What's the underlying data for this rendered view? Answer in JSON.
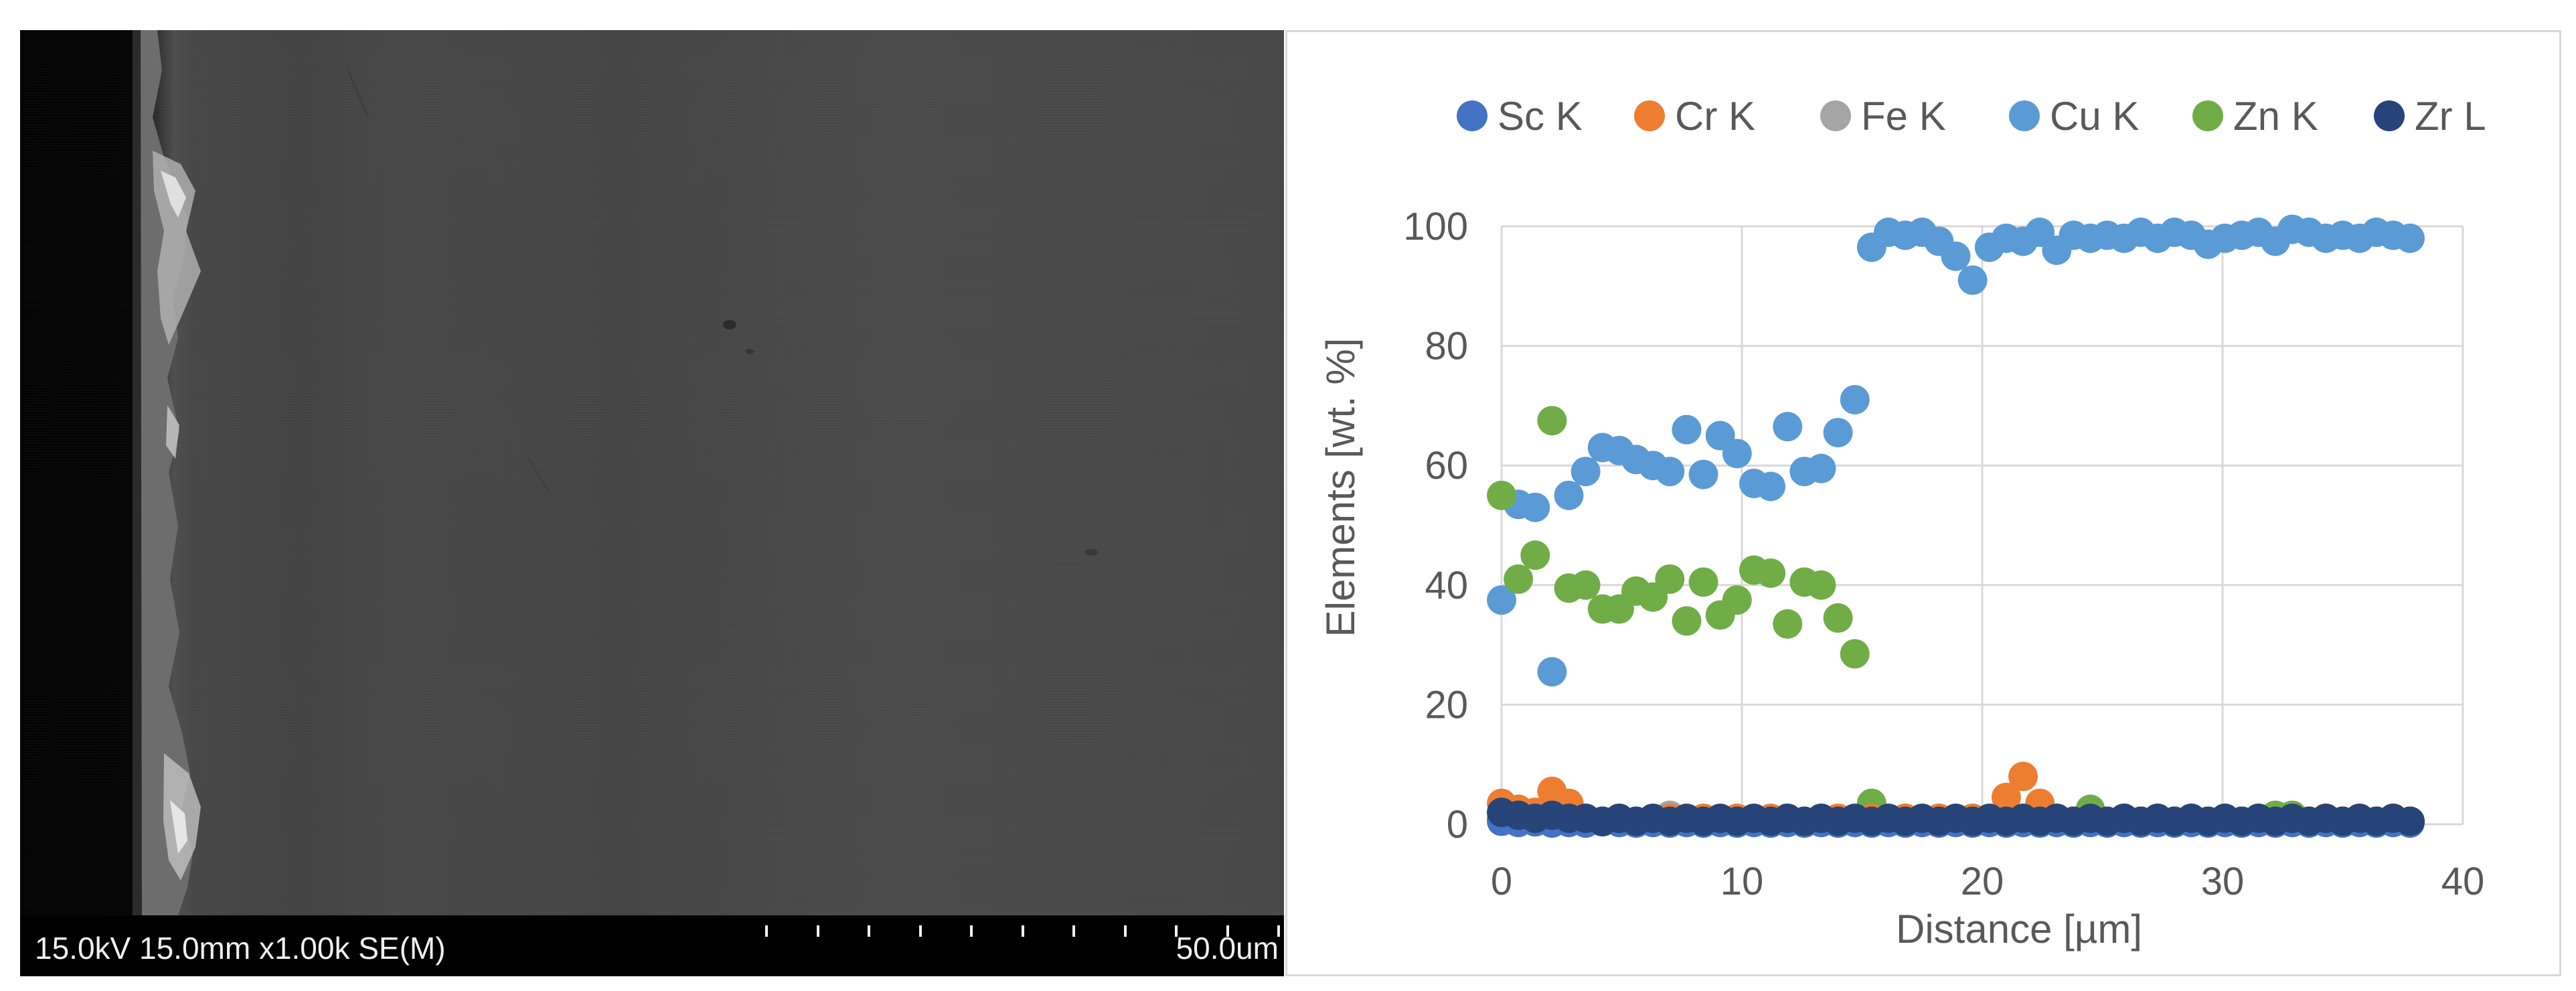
{
  "sem": {
    "info_text": "15.0kV 15.0mm x1.00k SE(M)",
    "scale_label": "50.0um"
  },
  "chart_data": {
    "type": "scatter",
    "title": "",
    "xlabel": "Distance [µm]",
    "ylabel": "Elements [wt. %]",
    "xlim": [
      0,
      40
    ],
    "ylim": [
      0,
      100
    ],
    "xticks": [
      0,
      10,
      20,
      30,
      40
    ],
    "yticks": [
      0,
      20,
      40,
      60,
      80,
      100
    ],
    "grid": true,
    "legend_position": "top",
    "x": [
      0,
      0.7,
      1.4,
      2.1,
      2.8,
      3.5,
      4.2,
      4.9,
      5.6,
      6.3,
      7,
      7.7,
      8.4,
      9.1,
      9.8,
      10.5,
      11.2,
      11.9,
      12.6,
      13.3,
      14,
      14.7,
      15.4,
      16.1,
      16.8,
      17.5,
      18.2,
      18.9,
      19.6,
      20.3,
      21,
      21.7,
      22.4,
      23.1,
      23.8,
      24.5,
      25.2,
      25.9,
      26.6,
      27.3,
      28,
      28.7,
      29.4,
      30.1,
      30.8,
      31.5,
      32.2,
      32.9,
      33.6,
      34.3,
      35,
      35.7,
      36.4,
      37.1,
      37.8
    ],
    "series": [
      {
        "name": "Sc K",
        "color": "#4472C4",
        "values": [
          0.5,
          0.3,
          0.4,
          0.2,
          0.3,
          0.2,
          0.4,
          0.3,
          0.2,
          0.3,
          0.2,
          0.3,
          0.2,
          0.3,
          0.2,
          0.3,
          0.2,
          0.3,
          0.2,
          0.3,
          0.2,
          0.3,
          0.2,
          0.3,
          0.2,
          0.3,
          0.2,
          0.3,
          0.2,
          0.3,
          0.2,
          0.3,
          0.2,
          0.3,
          0.2,
          0.3,
          0.2,
          0.3,
          0.2,
          0.3,
          0.2,
          0.3,
          0.2,
          0.3,
          0.2,
          0.3,
          0.2,
          0.3,
          0.2,
          0.3,
          0.2,
          0.3,
          0.2,
          0.3,
          0.2
        ]
      },
      {
        "name": "Cr K",
        "color": "#ED7D31",
        "values": [
          3.5,
          2.5,
          2,
          5.5,
          3.5,
          1,
          0.5,
          1,
          0.5,
          0.5,
          1,
          0.5,
          1,
          0.5,
          1,
          0.5,
          1,
          1,
          0.5,
          1,
          1,
          0.5,
          1,
          0.5,
          1,
          0.5,
          1,
          0.5,
          1,
          0.5,
          4.5,
          8,
          3.5,
          1,
          0.5,
          1,
          0.5,
          1,
          0.5,
          1,
          0.5,
          1,
          0.5,
          1,
          0.5,
          1,
          0.5,
          1,
          0.5,
          1,
          0.5,
          1,
          0.5,
          1,
          0.5
        ]
      },
      {
        "name": "Fe K",
        "color": "#A5A5A5",
        "values": [
          1,
          0.5,
          0.5,
          0.5,
          0.5,
          0.5,
          0.5,
          0.5,
          0.5,
          0.5,
          1.5,
          0.5,
          0.5,
          0.5,
          0.5,
          0.5,
          0.5,
          0.5,
          0.5,
          0.5,
          0.5,
          0.5,
          0.5,
          0.5,
          0.5,
          0.5,
          0.5,
          0.5,
          0.5,
          0.5,
          0.5,
          0.5,
          0.5,
          0.5,
          0.5,
          0.5,
          0.5,
          0.5,
          0.5,
          0.5,
          0.5,
          0.5,
          0.5,
          0.5,
          0.5,
          0.5,
          0.5,
          0.5,
          0.5,
          0.5,
          0.5,
          0.5,
          0.5,
          0.5,
          0.5
        ]
      },
      {
        "name": "Cu K",
        "color": "#5B9BD5",
        "values": [
          37.5,
          53.5,
          53,
          25.5,
          55,
          59,
          63,
          62.5,
          61,
          60,
          59,
          66,
          58.5,
          65,
          62,
          57,
          56.5,
          66.5,
          59,
          59.5,
          65.5,
          71,
          96.5,
          99,
          98.5,
          99,
          97.5,
          95,
          91,
          96.5,
          98,
          97.5,
          99,
          96,
          98.5,
          98,
          98.5,
          98,
          99,
          98,
          99,
          98.5,
          97,
          98,
          98.5,
          99,
          97.5,
          99.5,
          99,
          98,
          98.5,
          98,
          99,
          98.5,
          98
        ]
      },
      {
        "name": "Zn K",
        "color": "#70AD47",
        "values": [
          55,
          41,
          45,
          67.5,
          39.5,
          40,
          36,
          36,
          39,
          38,
          41,
          34,
          40.5,
          35,
          37.5,
          42.5,
          42,
          33.5,
          40.5,
          40,
          34.5,
          28.5,
          3.5,
          1,
          1,
          0.5,
          1,
          0.5,
          1,
          0.5,
          1.5,
          1,
          0.5,
          1,
          0.5,
          2.5,
          0.5,
          1,
          0.5,
          1,
          0.5,
          1,
          0.5,
          1,
          0.5,
          1,
          1.5,
          1.5,
          0.5,
          1,
          0.5,
          1,
          0.5,
          1,
          0.5
        ]
      },
      {
        "name": "Zr L",
        "color": "#264478",
        "values": [
          2,
          1.5,
          1,
          1.5,
          1,
          1,
          0.5,
          1,
          0.5,
          1,
          0.5,
          1,
          0.5,
          1,
          0.5,
          1,
          0.5,
          1,
          0.5,
          1,
          0.5,
          1,
          0.5,
          1,
          0.5,
          1,
          0.5,
          1,
          0.5,
          1,
          0.5,
          1,
          0.5,
          1,
          0.5,
          1,
          0.5,
          1,
          0.5,
          1,
          0.5,
          1,
          0.5,
          1,
          0.5,
          1,
          0.5,
          1,
          0.5,
          1,
          0.5,
          1,
          0.5,
          1,
          0.5
        ]
      }
    ]
  }
}
